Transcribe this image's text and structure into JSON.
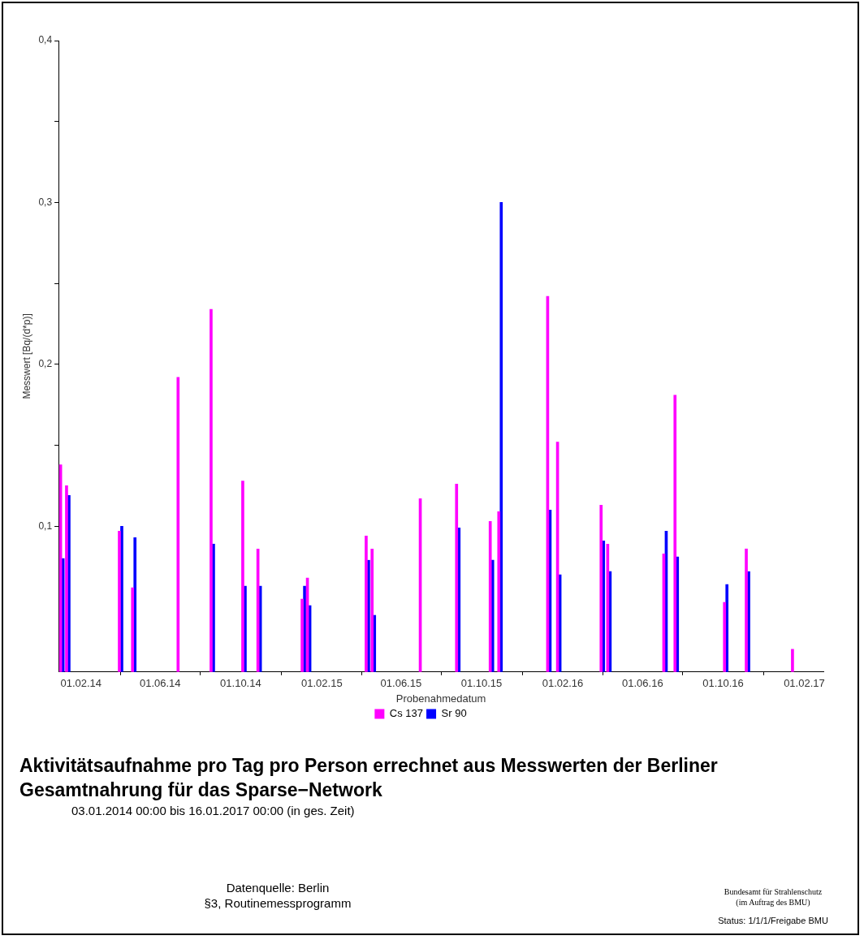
{
  "chart_data": {
    "type": "bar",
    "title": "Aktivitätsaufnahme pro Tag pro Person errechnet aus Messwerten der Berliner Gesamtnahrung für das Sparse−Network",
    "xlabel": "Probenahmedatum",
    "ylabel": "Messwert [Bq/(d*p)]",
    "x": [
      "2014-01-03",
      "2014-01-12",
      "2014-04-02",
      "2014-04-22",
      "2014-06-30",
      "2014-08-19",
      "2014-10-06",
      "2014-10-29",
      "2015-01-04",
      "2015-01-12",
      "2015-04-11",
      "2015-04-20",
      "2015-07-02",
      "2015-08-26",
      "2015-10-16",
      "2015-10-29",
      "2016-01-11",
      "2016-01-26",
      "2016-04-01",
      "2016-04-11",
      "2016-07-05",
      "2016-07-22",
      "2016-10-05",
      "2016-11-07",
      "2017-01-16"
    ],
    "series": [
      {
        "name": "Cs 137",
        "color": "#ff00ff",
        "values": [
          0.138,
          0.125,
          0.097,
          0.062,
          0.192,
          0.234,
          0.128,
          0.086,
          0.055,
          0.068,
          0.094,
          0.086,
          0.117,
          0.126,
          0.103,
          0.109,
          0.242,
          0.152,
          0.113,
          0.089,
          0.083,
          0.181,
          0.053,
          0.086,
          0.024
        ]
      },
      {
        "name": "Sr 90",
        "color": "#0000ff",
        "values": [
          0.08,
          0.119,
          0.1,
          0.093,
          null,
          0.089,
          0.063,
          0.063,
          0.063,
          0.051,
          0.079,
          0.045,
          null,
          0.099,
          0.079,
          0.3,
          0.11,
          0.07,
          0.091,
          0.072,
          0.097,
          0.081,
          0.064,
          0.072,
          null
        ]
      }
    ],
    "xlim": [
      "2013-12-29",
      "2017-03-02"
    ],
    "xticks": [
      {
        "value": "2014-02-01",
        "label": "01.02.14"
      },
      {
        "value": "2014-06-01",
        "label": "01.06.14"
      },
      {
        "value": "2014-10-01",
        "label": "01.10.14"
      },
      {
        "value": "2015-02-01",
        "label": "01.02.15"
      },
      {
        "value": "2015-06-01",
        "label": "01.06.15"
      },
      {
        "value": "2015-10-01",
        "label": "01.10.15"
      },
      {
        "value": "2016-02-01",
        "label": "01.02.16"
      },
      {
        "value": "2016-06-01",
        "label": "01.06.16"
      },
      {
        "value": "2016-10-01",
        "label": "01.10.16"
      },
      {
        "value": "2017-02-01",
        "label": "01.02.17"
      }
    ],
    "ylim": [
      0.01,
      0.4
    ],
    "yticks": [
      {
        "value": 0.1,
        "label": "0,1"
      },
      {
        "value": 0.15,
        "label": null
      },
      {
        "value": 0.2,
        "label": "0,2"
      },
      {
        "value": 0.25,
        "label": null
      },
      {
        "value": 0.3,
        "label": "0,3"
      },
      {
        "value": 0.35,
        "label": null
      },
      {
        "value": 0.4,
        "label": "0,4"
      }
    ],
    "grid": false,
    "legend": "bottom",
    "annotations": [
      "03.01.2014 00:00 bis 16.01.2017 00:00 (in ges. Zeit)",
      "Datenquelle: Berlin",
      "§3, Routinemessprogramm",
      "Bundesamt für Strahlenschutz",
      "(im Auftrag des BMU)",
      "Status: 1/1/1/Freigabe BMU"
    ]
  }
}
